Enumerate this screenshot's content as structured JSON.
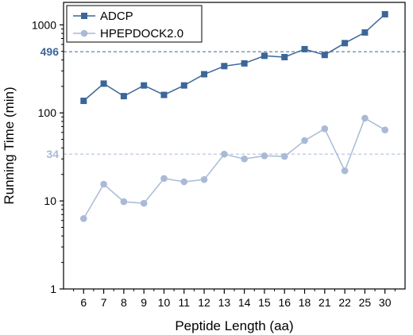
{
  "chart_data": {
    "type": "line",
    "xlabel": "Peptide Length (aa)",
    "ylabel": "Running Time (min)",
    "y_scale": "log",
    "ylim": [
      1,
      1800
    ],
    "y_ticks": [
      1,
      10,
      100,
      1000
    ],
    "grid": false,
    "legend_position": "top-left",
    "categories": [
      "6",
      "7",
      "8",
      "9",
      "10",
      "11",
      "12",
      "13",
      "14",
      "15",
      "16",
      "18",
      "21",
      "22",
      "25",
      "30"
    ],
    "series": [
      {
        "name": "ADCP",
        "color": "#3b6699",
        "marker": "square",
        "values": [
          137,
          215,
          155,
          205,
          160,
          205,
          275,
          340,
          365,
          445,
          430,
          530,
          455,
          620,
          820,
          1320
        ]
      },
      {
        "name": "HPEPDOCK2.0",
        "color": "#a9bad6",
        "marker": "circle",
        "values": [
          6.3,
          15.5,
          9.8,
          9.4,
          18,
          16.5,
          17.5,
          34,
          30,
          32.5,
          32,
          48.5,
          66,
          22,
          87,
          64
        ]
      }
    ],
    "reference_lines": [
      {
        "value": 496,
        "label": "496",
        "color": "#3b6699"
      },
      {
        "value": 34,
        "label": "34",
        "color": "#a9bad6"
      }
    ]
  }
}
